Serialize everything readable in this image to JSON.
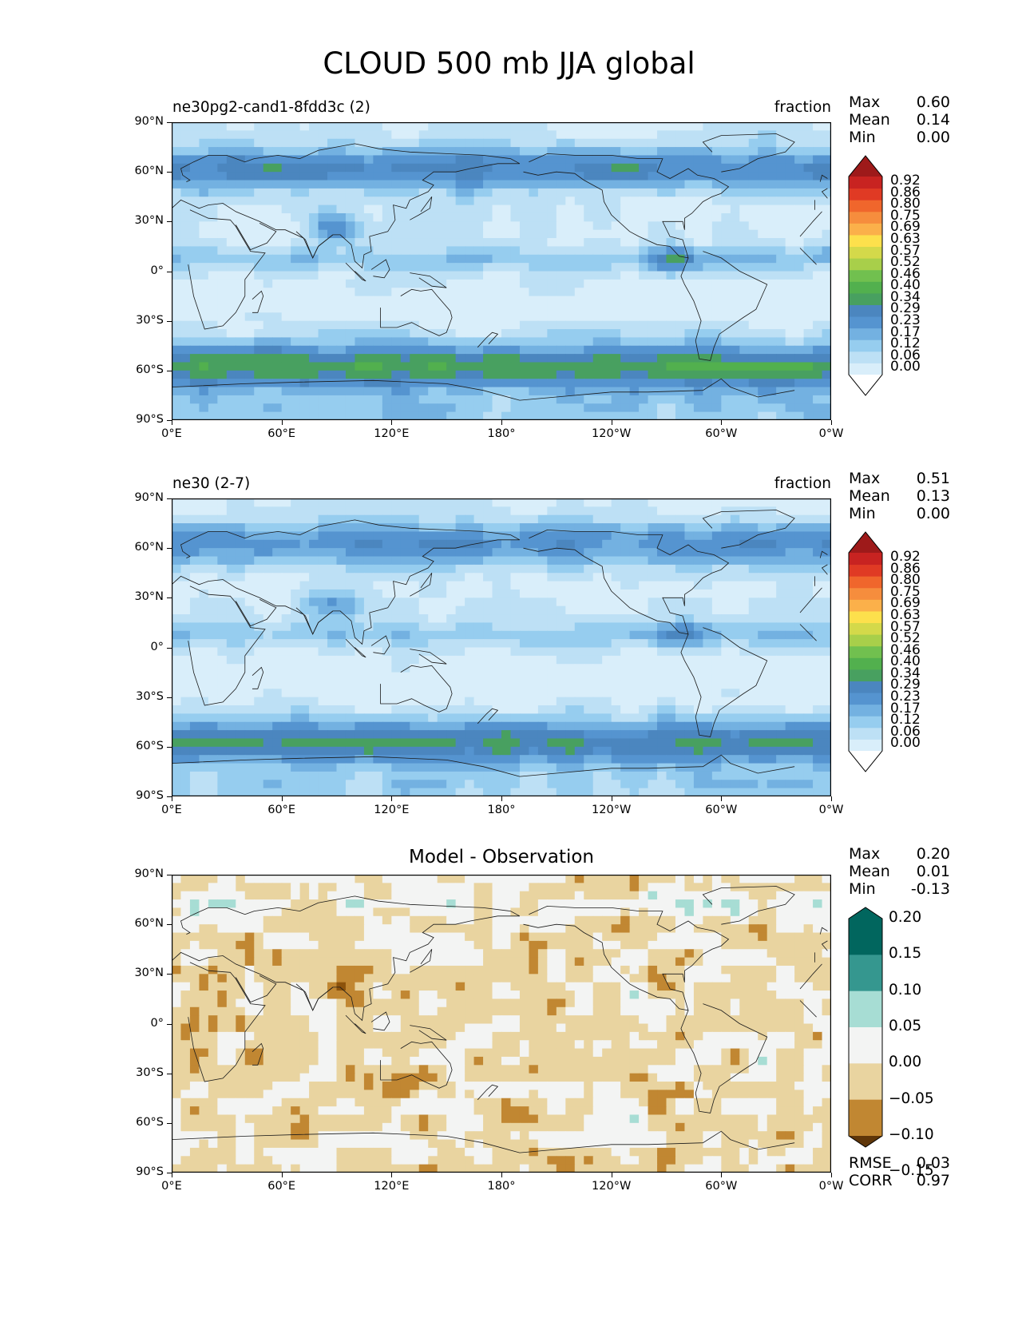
{
  "figure": {
    "title": "CLOUD 500 mb JJA global"
  },
  "panels": [
    {
      "id": "test",
      "left_title": "ne30pg2-cand1-8fdd3c (2)",
      "right_title": "fraction",
      "center_title": "",
      "stats": {
        "max_label": "Max",
        "max": "0.60",
        "mean_label": "Mean",
        "mean": "0.14",
        "min_label": "Min",
        "min": "0.00"
      },
      "colorbar": {
        "type": "sequential",
        "levels": [
          "0.00",
          "0.06",
          "0.12",
          "0.17",
          "0.23",
          "0.29",
          "0.34",
          "0.40",
          "0.46",
          "0.52",
          "0.57",
          "0.63",
          "0.69",
          "0.75",
          "0.80",
          "0.86",
          "0.92"
        ],
        "colors": [
          "#ffffff",
          "#d9eefa",
          "#bde0f5",
          "#96cdef",
          "#73b1e1",
          "#5594d0",
          "#4b86bf",
          "#48a060",
          "#52b04e",
          "#71c04f",
          "#a8cf4a",
          "#d4d94a",
          "#fde04c",
          "#fbb04a",
          "#f68d3d",
          "#f0662c",
          "#e03a24",
          "#c82321",
          "#9e1a1a"
        ]
      },
      "xticks": [
        "0°E",
        "60°E",
        "120°E",
        "180°",
        "120°W",
        "60°W",
        "0°W"
      ],
      "yticks": [
        "90°N",
        "60°N",
        "30°N",
        "0°",
        "30°S",
        "60°S",
        "90°S"
      ]
    },
    {
      "id": "ref",
      "left_title": "ne30 (2-7)",
      "right_title": "fraction",
      "center_title": "",
      "stats": {
        "max_label": "Max",
        "max": "0.51",
        "mean_label": "Mean",
        "mean": "0.13",
        "min_label": "Min",
        "min": "0.00"
      },
      "colorbar": {
        "type": "sequential",
        "levels": [
          "0.00",
          "0.06",
          "0.12",
          "0.17",
          "0.23",
          "0.29",
          "0.34",
          "0.40",
          "0.46",
          "0.52",
          "0.57",
          "0.63",
          "0.69",
          "0.75",
          "0.80",
          "0.86",
          "0.92"
        ],
        "colors": [
          "#ffffff",
          "#d9eefa",
          "#bde0f5",
          "#96cdef",
          "#73b1e1",
          "#5594d0",
          "#4b86bf",
          "#48a060",
          "#52b04e",
          "#71c04f",
          "#a8cf4a",
          "#d4d94a",
          "#fde04c",
          "#fbb04a",
          "#f68d3d",
          "#f0662c",
          "#e03a24",
          "#c82321",
          "#9e1a1a"
        ]
      },
      "xticks": [
        "0°E",
        "60°E",
        "120°E",
        "180°",
        "120°W",
        "60°W",
        "0°W"
      ],
      "yticks": [
        "90°N",
        "60°N",
        "30°N",
        "0°",
        "30°S",
        "60°S",
        "90°S"
      ]
    },
    {
      "id": "diff",
      "left_title": "",
      "right_title": "",
      "center_title": "Model - Observation",
      "stats": {
        "max_label": "Max",
        "max": "0.20",
        "mean_label": "Mean",
        "mean": "0.01",
        "min_label": "Min",
        "min": "-0.13"
      },
      "extra_stats": {
        "rmse_label": "RMSE",
        "rmse": "0.03",
        "corr_label": "CORR",
        "corr": "0.97"
      },
      "colorbar": {
        "type": "diverging",
        "levels": [
          "0.20",
          "0.15",
          "0.10",
          "0.05",
          "0.00",
          "−0.05",
          "−0.10",
          "−0.15"
        ],
        "colors": [
          "#01665e",
          "#35978f",
          "#a7ddd4",
          "#f3f4f3",
          "#e9d4a0",
          "#c18732",
          "#8c520b",
          "#5f3609"
        ]
      },
      "xticks": [
        "0°E",
        "60°E",
        "120°E",
        "180°",
        "120°W",
        "60°W",
        "0°W"
      ],
      "yticks": [
        "90°N",
        "60°N",
        "30°N",
        "0°",
        "30°S",
        "60°S",
        "90°S"
      ]
    }
  ]
}
